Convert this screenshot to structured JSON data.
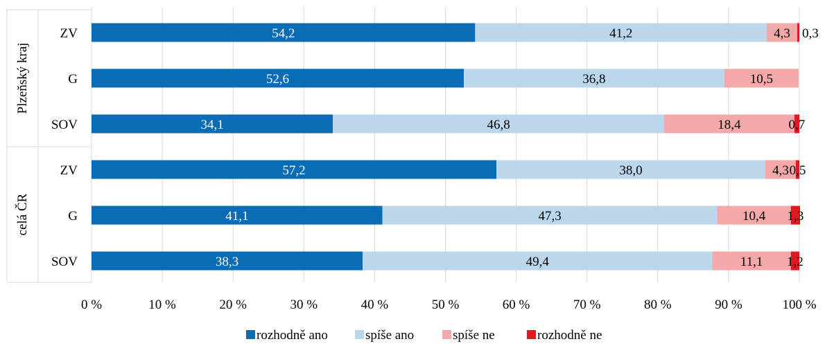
{
  "chart_data": {
    "type": "bar",
    "orientation": "horizontal",
    "stacked": true,
    "percent": true,
    "xlim": [
      0,
      100
    ],
    "xticks": [
      "0 %",
      "10 %",
      "20 %",
      "30 %",
      "40 %",
      "50 %",
      "60 %",
      "70 %",
      "80 %",
      "90 %",
      "100 %"
    ],
    "groups": [
      {
        "label": "Plzeňský kraj",
        "categories": [
          "ZV",
          "G",
          "SOV"
        ]
      },
      {
        "label": "celá ČR",
        "categories": [
          "ZV",
          "G",
          "SOV"
        ]
      }
    ],
    "series": [
      {
        "name": "rozhodně ano",
        "color": "#0a6cb5",
        "label_color": "#ffffff",
        "values": [
          54.2,
          52.6,
          34.1,
          57.2,
          41.1,
          38.3
        ],
        "labels": [
          "54,2",
          "52,6",
          "34,1",
          "57,2",
          "41,1",
          "38,3"
        ]
      },
      {
        "name": "spíše ano",
        "color": "#bcd6ec",
        "label_color": "#000000",
        "values": [
          41.2,
          36.8,
          46.8,
          38.0,
          47.3,
          49.4
        ],
        "labels": [
          "41,2",
          "36,8",
          "46,8",
          "38,0",
          "47,3",
          "49,4"
        ]
      },
      {
        "name": "spíše ne",
        "color": "#f3a9a9",
        "label_color": "#000000",
        "values": [
          4.3,
          10.5,
          18.4,
          4.3,
          10.4,
          11.1
        ],
        "labels": [
          "4,3",
          "10,5",
          "18,4",
          "4,3",
          "10,4",
          "11,1"
        ]
      },
      {
        "name": "rozhodně ne",
        "color": "#e0181f",
        "label_color": "#000000",
        "values": [
          0.3,
          0.0,
          0.7,
          0.5,
          1.3,
          1.2
        ],
        "labels": [
          "0,3",
          "",
          "0,7",
          "0,5",
          "1,3",
          "1,2"
        ]
      }
    ],
    "legend_position": "bottom",
    "grid": true
  }
}
